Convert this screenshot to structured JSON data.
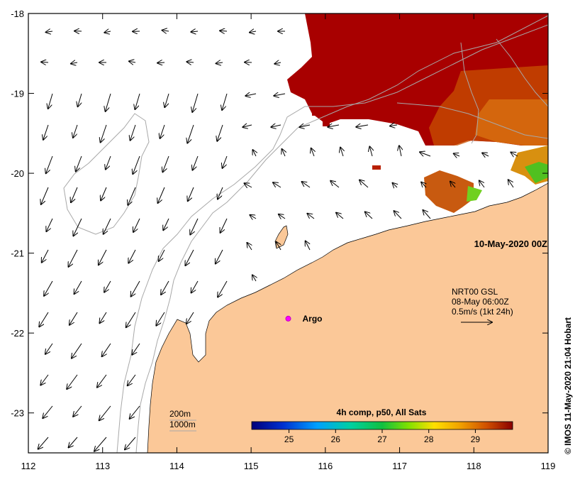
{
  "map": {
    "lon_range": [
      112,
      119
    ],
    "lat_range": [
      -23.5,
      -18
    ],
    "lon_ticks": [
      "112",
      "113",
      "114",
      "115",
      "116",
      "117",
      "118",
      "119"
    ],
    "lat_ticks": [
      "-18",
      "-19",
      "-20",
      "-21",
      "-22",
      "-23"
    ],
    "colors": {
      "land": "#fbc898",
      "ocean": "#ffffff",
      "contour": "#a8a8a8",
      "frame": "#000000",
      "sst_hot": "#a80000",
      "argo": "#ff00ff"
    }
  },
  "date_label": "10-May-2020 00Z",
  "current_legend": {
    "line1": "NRT00 GSL",
    "line2": "08-May 06:00Z",
    "line3": "0.5m/s (1kt 24h)"
  },
  "argo": {
    "label": "Argo",
    "lon": 115.5,
    "lat": -21.82
  },
  "depth_legend": {
    "line1": "200m",
    "line2": "1000m"
  },
  "colorbar": {
    "title": "4h comp, p50, All Sats",
    "min": 24.2,
    "max": 29.8,
    "tick_labels": [
      "25",
      "26",
      "27",
      "28",
      "29"
    ],
    "tick_values": [
      25,
      26,
      27,
      28,
      29
    ]
  },
  "credit": "© IMOS 11-May-2020 21:04 Hobart"
}
